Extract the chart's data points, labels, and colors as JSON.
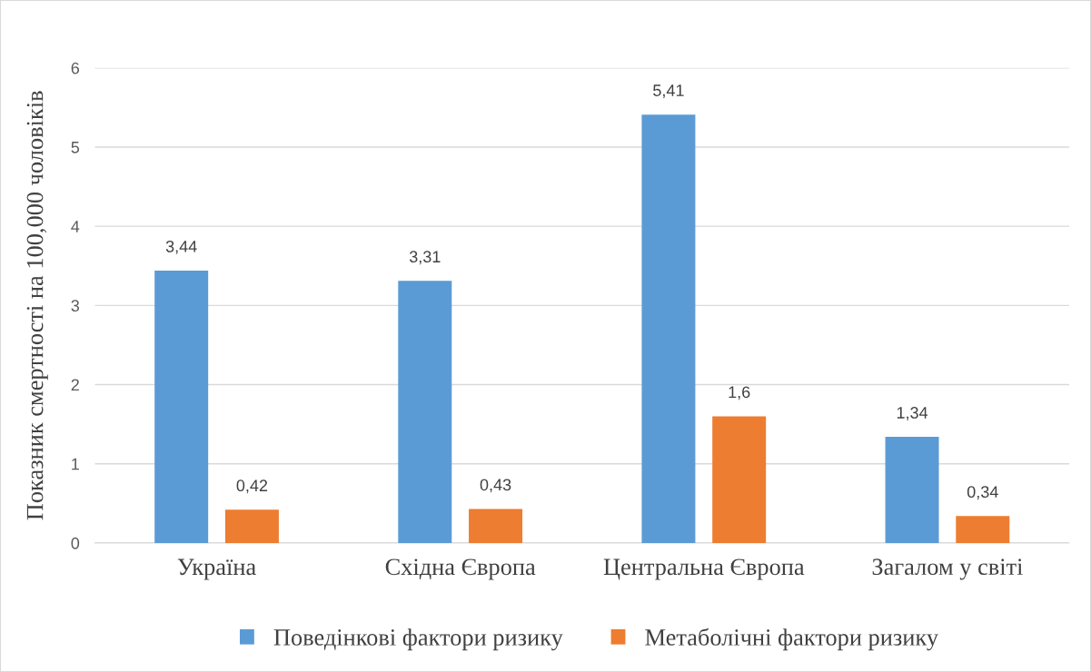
{
  "chart_data": {
    "type": "bar",
    "ylabel": "Показник смертності на 100,000 чоловіків",
    "categories": [
      "Україна",
      "Східна Європа",
      "Центральна Європа",
      "Загалом у світі"
    ],
    "series": [
      {
        "name": "Поведінкові фактори ризику",
        "color": "#5b9bd5",
        "values": [
          3.44,
          3.31,
          5.41,
          1.34
        ],
        "value_labels": [
          "3,44",
          "3,31",
          "5,41",
          "1,34"
        ]
      },
      {
        "name": "Метаболічні фактори ризику",
        "color": "#ed7d31",
        "values": [
          0.42,
          0.43,
          1.6,
          0.34
        ],
        "value_labels": [
          "0,42",
          "0,43",
          "1,6",
          "0,34"
        ]
      }
    ],
    "ylim": [
      0,
      6
    ],
    "yticks": [
      0,
      1,
      2,
      3,
      4,
      5,
      6
    ],
    "grid": "y",
    "legend": "bottom"
  }
}
